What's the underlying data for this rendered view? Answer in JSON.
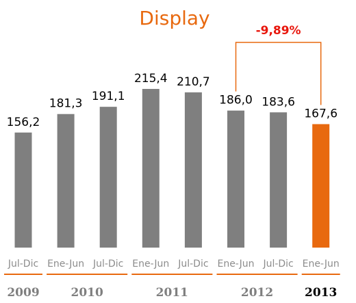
{
  "chart_data": {
    "type": "bar",
    "title": "Display",
    "categories": [
      "Jul-Dic",
      "Ene-Jun",
      "Jul-Dic",
      "Ene-Jun",
      "Jul-Dic",
      "Ene-Jun",
      "Jul-Dic",
      "Ene-Jun"
    ],
    "values": [
      156.2,
      181.3,
      191.1,
      215.4,
      210.7,
      186.0,
      183.6,
      167.6
    ],
    "value_labels": [
      "156,2",
      "181,3",
      "191,1",
      "215,4",
      "210,7",
      "186,0",
      "183,6",
      "167,6"
    ],
    "year_groups": [
      {
        "label": "2009",
        "bars": [
          0,
          0
        ]
      },
      {
        "label": "2010",
        "bars": [
          1,
          2
        ]
      },
      {
        "label": "2011",
        "bars": [
          3,
          4
        ]
      },
      {
        "label": "2012",
        "bars": [
          5,
          6
        ]
      },
      {
        "label": "2013",
        "bars": [
          7,
          7
        ]
      }
    ],
    "change_annotation": {
      "label": "-9,89%",
      "from_bar": 5,
      "to_bar": 7
    },
    "highlight_bar": 7,
    "grid": false,
    "colors": {
      "bar": "#7f7f7f",
      "highlight": "#e8690f",
      "title": "#e8690f",
      "change": "#e8160c",
      "bracket": "#e8690f",
      "period_text": "#8c8c8c",
      "value_text": "#000000"
    }
  }
}
